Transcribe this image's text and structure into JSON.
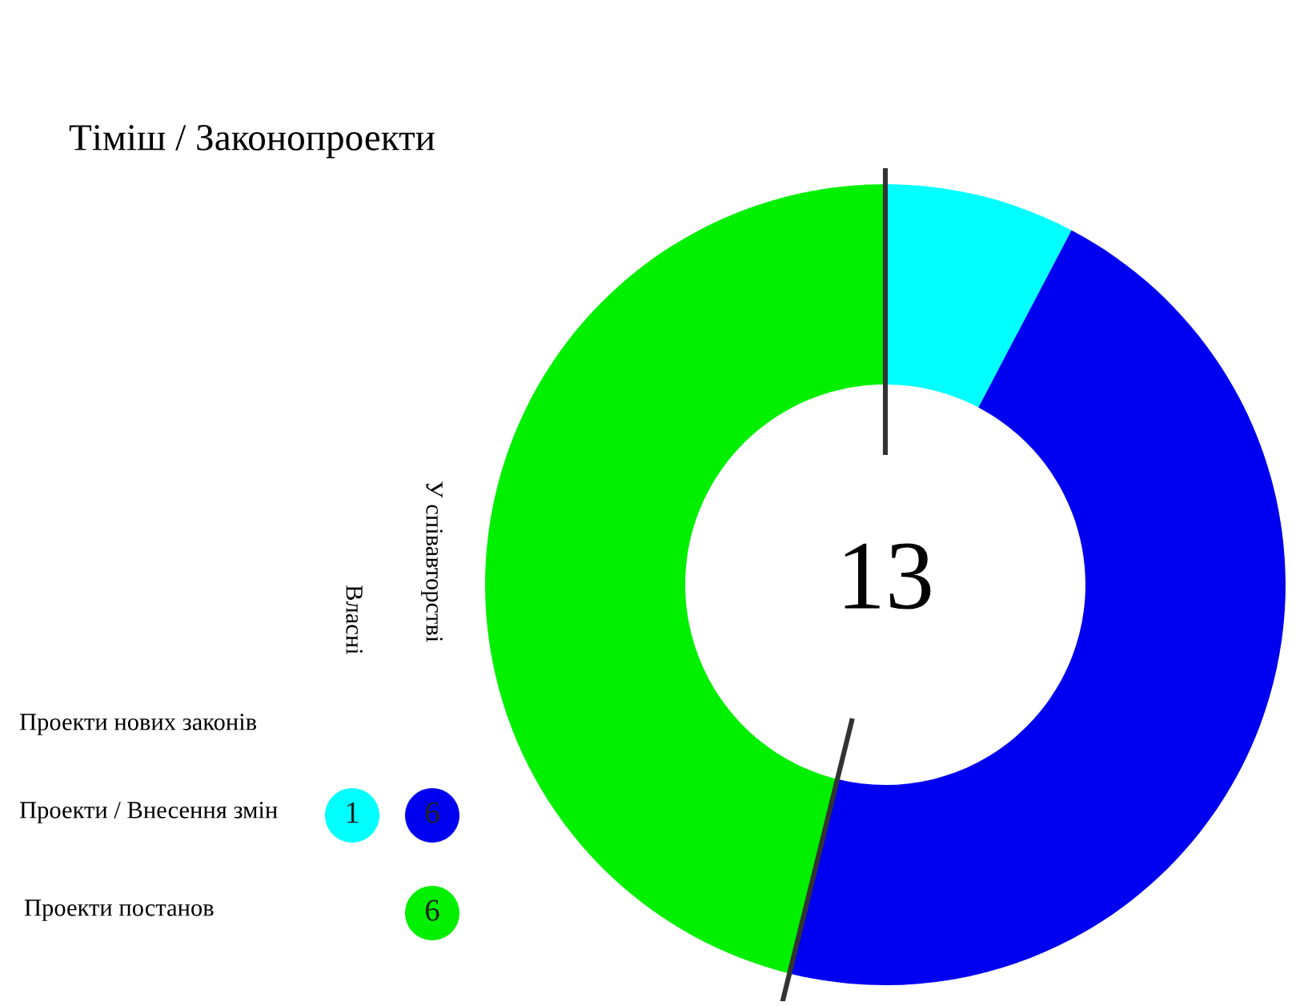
{
  "chart_data": {
    "type": "donut",
    "title": "Тіміш / Законопроекти",
    "categories": [
      null,
      null,
      null
    ],
    "values": [
      7.7,
      46.15,
      46.15
    ],
    "colors": [
      "#00ffff",
      "#0000f0",
      "#00f000"
    ],
    "annotations": [
      "13",
      "Проекти нових законів",
      "Проекти / Внесення змін",
      "Проекти постанов",
      "Власні",
      "У співавторстві",
      "1",
      "6",
      "6"
    ]
  }
}
